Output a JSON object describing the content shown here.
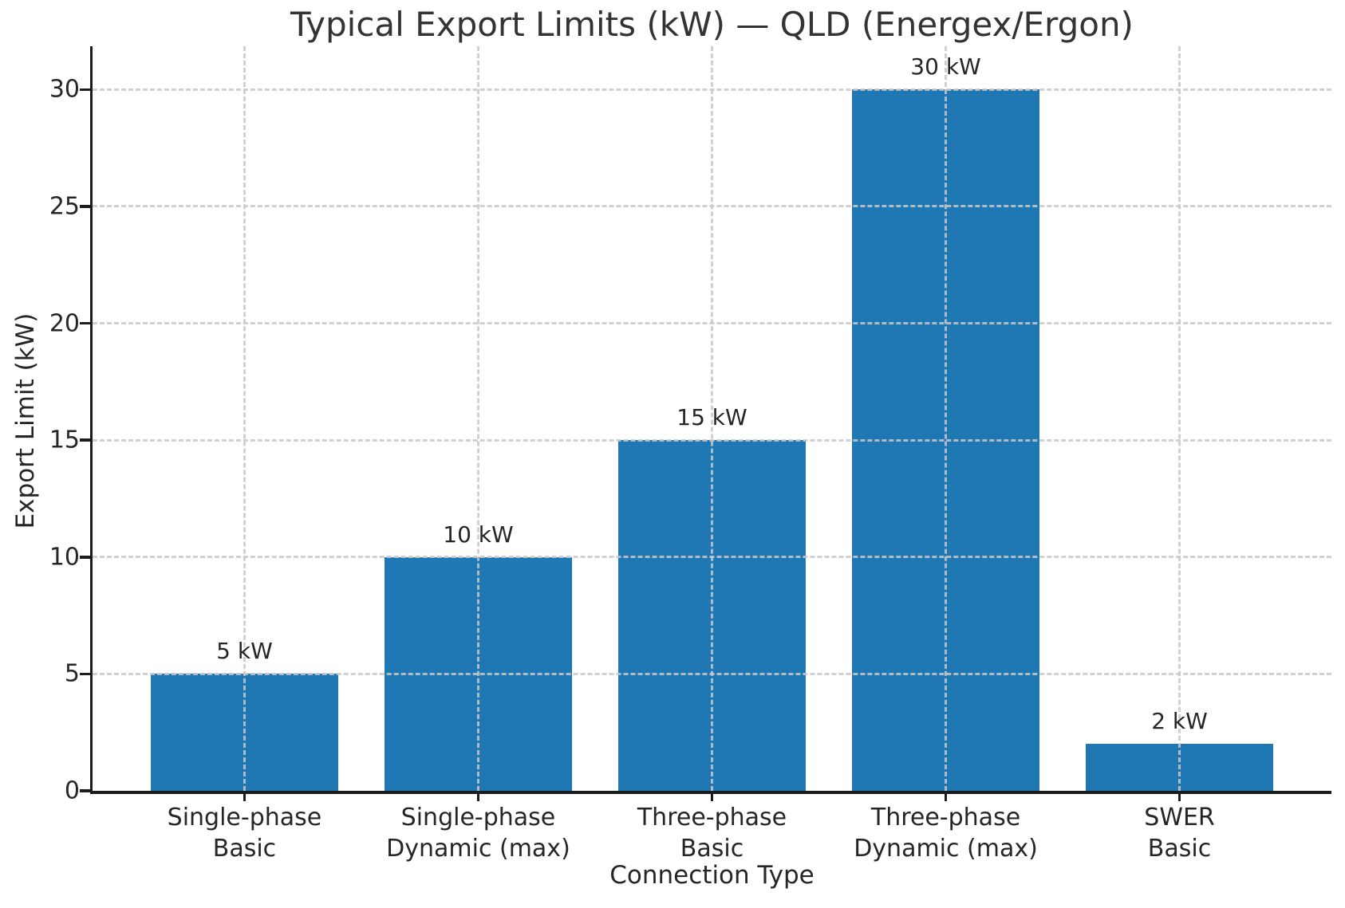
{
  "chart_data": {
    "type": "bar",
    "title": "Typical Export Limits (kW) — QLD (Energex/Ergon)",
    "xlabel": "Connection Type",
    "ylabel": "Export Limit (kW)",
    "categories": [
      "Single-phase\nBasic",
      "Single-phase\nDynamic (max)",
      "Three-phase\nBasic",
      "Three-phase\nDynamic (max)",
      "SWER\nBasic"
    ],
    "values": [
      5,
      10,
      15,
      30,
      2
    ],
    "bar_labels": [
      "5 kW",
      "10 kW",
      "15 kW",
      "30 kW",
      "2 kW"
    ],
    "yticks": [
      0,
      5,
      10,
      15,
      20,
      25,
      30
    ],
    "ylim": [
      0,
      31.85
    ],
    "bar_width_fraction": 0.8,
    "grid": "both, dashed, drawn above bars",
    "legend": "none",
    "bar_color": "#1f77b4"
  },
  "style": {
    "bar_color": "#1f77b4",
    "grid_color": "#c9c9c9",
    "text_color": "#262626",
    "title_color": "#333333",
    "spine_color": "#1c1c1c",
    "background": "#ffffff"
  }
}
